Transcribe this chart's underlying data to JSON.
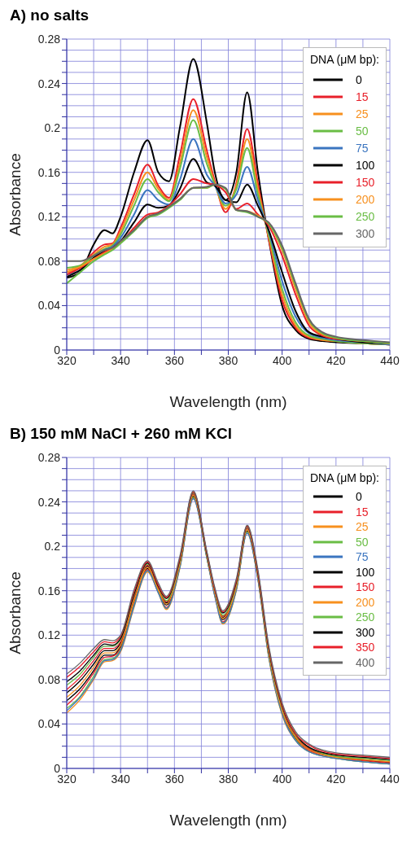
{
  "chart_data": [
    {
      "type": "line",
      "title": "A) no salts",
      "xlabel": "Wavelength (nm)",
      "ylabel": "Absorbance",
      "legend_title": "DNA (μM bp):",
      "legend": "top right",
      "grid": true,
      "xlim": [
        320,
        440
      ],
      "xticks": [
        320,
        {
          "value": 330,
          "label": null
        },
        340,
        {
          "value": 350,
          "label": null
        },
        360,
        {
          "value": 370,
          "label": null
        },
        380,
        {
          "value": 390,
          "label": null
        },
        400,
        {
          "value": 410,
          "label": null
        },
        420,
        {
          "value": 430,
          "label": null
        },
        440
      ],
      "ylim": [
        0,
        0.28
      ],
      "yticks": [
        0,
        {
          "value": 0.01,
          "label": null
        },
        {
          "value": 0.02,
          "label": null
        },
        {
          "value": 0.03,
          "label": null
        },
        0.04,
        {
          "value": 0.05,
          "label": null
        },
        {
          "value": 0.06,
          "label": null
        },
        {
          "value": 0.07,
          "label": null
        },
        0.08,
        {
          "value": 0.09,
          "label": null
        },
        {
          "value": 0.1,
          "label": null
        },
        {
          "value": 0.11,
          "label": null
        },
        0.12,
        {
          "value": 0.13,
          "label": null
        },
        {
          "value": 0.14,
          "label": null
        },
        {
          "value": 0.15,
          "label": null
        },
        0.16,
        {
          "value": 0.17,
          "label": null
        },
        {
          "value": 0.18,
          "label": null
        },
        {
          "value": 0.19,
          "label": null
        },
        0.2,
        {
          "value": 0.21,
          "label": null
        },
        {
          "value": 0.22,
          "label": null
        },
        {
          "value": 0.23,
          "label": null
        },
        0.24,
        {
          "value": 0.25,
          "label": null
        },
        {
          "value": 0.26,
          "label": null
        },
        {
          "value": 0.27,
          "label": null
        },
        0.28
      ],
      "x": [
        320,
        325,
        330,
        334,
        337,
        340,
        345,
        350,
        354,
        358,
        362,
        367,
        372,
        375,
        379,
        383,
        387,
        391,
        395,
        400,
        405,
        410,
        415,
        420,
        430,
        440
      ],
      "series": [
        {
          "name": "0",
          "color": "#000000",
          "values": [
            0.065,
            0.07,
            0.095,
            0.108,
            0.105,
            0.12,
            0.16,
            0.189,
            0.16,
            0.152,
            0.2,
            0.262,
            0.205,
            0.16,
            0.135,
            0.16,
            0.232,
            0.16,
            0.1,
            0.04,
            0.018,
            0.01,
            0.008,
            0.007,
            0.006,
            0.005
          ]
        },
        {
          "name": "15",
          "color": "#e8202a",
          "values": [
            0.07,
            0.075,
            0.088,
            0.095,
            0.096,
            0.11,
            0.14,
            0.167,
            0.148,
            0.137,
            0.175,
            0.226,
            0.18,
            0.152,
            0.124,
            0.15,
            0.199,
            0.15,
            0.1,
            0.045,
            0.02,
            0.011,
            0.009,
            0.008,
            0.006,
            0.005
          ]
        },
        {
          "name": "25",
          "color": "#f7901e",
          "values": [
            0.072,
            0.076,
            0.086,
            0.093,
            0.095,
            0.107,
            0.135,
            0.16,
            0.145,
            0.135,
            0.168,
            0.216,
            0.174,
            0.15,
            0.127,
            0.148,
            0.19,
            0.145,
            0.102,
            0.05,
            0.022,
            0.012,
            0.009,
            0.008,
            0.006,
            0.005
          ]
        },
        {
          "name": "50",
          "color": "#6abd45",
          "values": [
            0.074,
            0.076,
            0.085,
            0.091,
            0.094,
            0.104,
            0.13,
            0.154,
            0.142,
            0.134,
            0.163,
            0.207,
            0.168,
            0.149,
            0.13,
            0.145,
            0.182,
            0.14,
            0.104,
            0.055,
            0.025,
            0.013,
            0.01,
            0.008,
            0.006,
            0.005
          ]
        },
        {
          "name": "75",
          "color": "#3b75c0",
          "values": [
            0.068,
            0.072,
            0.083,
            0.09,
            0.093,
            0.101,
            0.122,
            0.144,
            0.135,
            0.131,
            0.153,
            0.19,
            0.158,
            0.148,
            0.132,
            0.14,
            0.165,
            0.135,
            0.107,
            0.062,
            0.03,
            0.015,
            0.011,
            0.009,
            0.007,
            0.005
          ]
        },
        {
          "name": "100",
          "color": "#000000",
          "values": [
            0.066,
            0.072,
            0.083,
            0.089,
            0.092,
            0.098,
            0.115,
            0.131,
            0.128,
            0.13,
            0.145,
            0.172,
            0.151,
            0.148,
            0.135,
            0.133,
            0.149,
            0.13,
            0.108,
            0.07,
            0.035,
            0.016,
            0.012,
            0.01,
            0.007,
            0.006
          ]
        },
        {
          "name": "150",
          "color": "#e8202a",
          "values": [
            0.068,
            0.074,
            0.082,
            0.088,
            0.092,
            0.097,
            0.11,
            0.122,
            0.124,
            0.13,
            0.14,
            0.154,
            0.15,
            0.149,
            0.142,
            0.127,
            0.132,
            0.122,
            0.112,
            0.085,
            0.05,
            0.022,
            0.013,
            0.01,
            0.008,
            0.006
          ]
        },
        {
          "name": "200",
          "color": "#f7901e",
          "values": [
            0.07,
            0.075,
            0.082,
            0.087,
            0.091,
            0.097,
            0.108,
            0.12,
            0.123,
            0.129,
            0.136,
            0.146,
            0.146,
            0.149,
            0.145,
            0.126,
            0.125,
            0.121,
            0.114,
            0.09,
            0.055,
            0.025,
            0.014,
            0.011,
            0.008,
            0.006
          ]
        },
        {
          "name": "250",
          "color": "#6abd45",
          "values": [
            0.06,
            0.07,
            0.08,
            0.086,
            0.09,
            0.096,
            0.107,
            0.119,
            0.122,
            0.128,
            0.135,
            0.146,
            0.146,
            0.149,
            0.145,
            0.126,
            0.124,
            0.12,
            0.114,
            0.092,
            0.058,
            0.027,
            0.015,
            0.011,
            0.008,
            0.006
          ]
        },
        {
          "name": "300",
          "color": "#666666",
          "values": [
            0.08,
            0.08,
            0.085,
            0.09,
            0.092,
            0.098,
            0.108,
            0.12,
            0.123,
            0.129,
            0.136,
            0.146,
            0.147,
            0.149,
            0.146,
            0.126,
            0.125,
            0.12,
            0.115,
            0.094,
            0.06,
            0.028,
            0.016,
            0.012,
            0.009,
            0.007
          ]
        }
      ]
    },
    {
      "type": "line",
      "title": "B) 150 mM NaCl + 260 mM KCl",
      "xlabel": "Wavelength (nm)",
      "ylabel": "Absorbance",
      "legend_title": "DNA (μM bp):",
      "legend": "top right",
      "grid": true,
      "xlim": [
        320,
        440
      ],
      "xticks": [
        320,
        {
          "value": 330,
          "label": null
        },
        340,
        {
          "value": 350,
          "label": null
        },
        360,
        {
          "value": 370,
          "label": null
        },
        380,
        {
          "value": 390,
          "label": null
        },
        400,
        {
          "value": 410,
          "label": null
        },
        420,
        {
          "value": 430,
          "label": null
        },
        440
      ],
      "ylim": [
        0,
        0.28
      ],
      "yticks": [
        0,
        {
          "value": 0.01,
          "label": null
        },
        {
          "value": 0.02,
          "label": null
        },
        {
          "value": 0.03,
          "label": null
        },
        0.04,
        {
          "value": 0.05,
          "label": null
        },
        {
          "value": 0.06,
          "label": null
        },
        {
          "value": 0.07,
          "label": null
        },
        0.08,
        {
          "value": 0.09,
          "label": null
        },
        {
          "value": 0.1,
          "label": null
        },
        {
          "value": 0.11,
          "label": null
        },
        0.12,
        {
          "value": 0.13,
          "label": null
        },
        {
          "value": 0.14,
          "label": null
        },
        {
          "value": 0.15,
          "label": null
        },
        0.16,
        {
          "value": 0.17,
          "label": null
        },
        {
          "value": 0.18,
          "label": null
        },
        {
          "value": 0.19,
          "label": null
        },
        0.2,
        {
          "value": 0.21,
          "label": null
        },
        {
          "value": 0.22,
          "label": null
        },
        {
          "value": 0.23,
          "label": null
        },
        0.24,
        {
          "value": 0.25,
          "label": null
        },
        {
          "value": 0.26,
          "label": null
        },
        {
          "value": 0.27,
          "label": null
        },
        0.28
      ],
      "x": [
        320,
        325,
        330,
        334,
        337,
        340,
        345,
        350,
        354,
        357,
        362,
        367,
        372,
        375,
        378,
        383,
        387,
        391,
        395,
        400,
        405,
        410,
        420,
        430,
        440
      ],
      "series": [
        {
          "name": "0",
          "color": "#000000",
          "values": [
            0.061,
            0.072,
            0.088,
            0.102,
            0.102,
            0.11,
            0.15,
            0.18,
            0.16,
            0.147,
            0.183,
            0.245,
            0.192,
            0.157,
            0.134,
            0.163,
            0.214,
            0.172,
            0.103,
            0.051,
            0.027,
            0.017,
            0.01,
            0.007,
            0.005
          ]
        },
        {
          "name": "15",
          "color": "#e8202a",
          "values": [
            0.057,
            0.069,
            0.086,
            0.1,
            0.101,
            0.108,
            0.148,
            0.179,
            0.16,
            0.145,
            0.182,
            0.244,
            0.191,
            0.156,
            0.132,
            0.162,
            0.213,
            0.172,
            0.102,
            0.05,
            0.026,
            0.016,
            0.01,
            0.007,
            0.005
          ]
        },
        {
          "name": "25",
          "color": "#f7901e",
          "values": [
            0.05,
            0.062,
            0.08,
            0.096,
            0.097,
            0.105,
            0.145,
            0.177,
            0.158,
            0.143,
            0.18,
            0.243,
            0.19,
            0.155,
            0.13,
            0.16,
            0.212,
            0.17,
            0.1,
            0.048,
            0.025,
            0.015,
            0.009,
            0.006,
            0.004
          ]
        },
        {
          "name": "50",
          "color": "#6abd45",
          "values": [
            0.054,
            0.065,
            0.083,
            0.098,
            0.099,
            0.107,
            0.147,
            0.178,
            0.159,
            0.144,
            0.181,
            0.244,
            0.19,
            0.156,
            0.131,
            0.161,
            0.213,
            0.171,
            0.101,
            0.049,
            0.026,
            0.015,
            0.009,
            0.006,
            0.004
          ]
        },
        {
          "name": "75",
          "color": "#3b75c0",
          "values": [
            0.052,
            0.064,
            0.081,
            0.097,
            0.098,
            0.106,
            0.146,
            0.178,
            0.158,
            0.144,
            0.181,
            0.243,
            0.19,
            0.155,
            0.131,
            0.161,
            0.212,
            0.17,
            0.101,
            0.049,
            0.025,
            0.015,
            0.009,
            0.006,
            0.004
          ]
        },
        {
          "name": "100",
          "color": "#000000",
          "values": [
            0.068,
            0.079,
            0.094,
            0.106,
            0.106,
            0.113,
            0.153,
            0.182,
            0.162,
            0.149,
            0.185,
            0.247,
            0.193,
            0.159,
            0.136,
            0.165,
            0.216,
            0.174,
            0.105,
            0.053,
            0.029,
            0.018,
            0.011,
            0.008,
            0.006
          ]
        },
        {
          "name": "150",
          "color": "#e8202a",
          "values": [
            0.071,
            0.082,
            0.097,
            0.108,
            0.108,
            0.114,
            0.154,
            0.183,
            0.163,
            0.15,
            0.186,
            0.247,
            0.193,
            0.159,
            0.137,
            0.166,
            0.216,
            0.175,
            0.106,
            0.054,
            0.029,
            0.018,
            0.011,
            0.008,
            0.006
          ]
        },
        {
          "name": "200",
          "color": "#f7901e",
          "values": [
            0.064,
            0.075,
            0.091,
            0.104,
            0.104,
            0.111,
            0.151,
            0.181,
            0.161,
            0.148,
            0.184,
            0.246,
            0.192,
            0.158,
            0.135,
            0.164,
            0.215,
            0.173,
            0.104,
            0.052,
            0.028,
            0.017,
            0.01,
            0.008,
            0.006
          ]
        },
        {
          "name": "250",
          "color": "#6abd45",
          "values": [
            0.075,
            0.085,
            0.1,
            0.11,
            0.11,
            0.116,
            0.156,
            0.184,
            0.164,
            0.151,
            0.187,
            0.248,
            0.194,
            0.16,
            0.138,
            0.167,
            0.217,
            0.176,
            0.107,
            0.055,
            0.03,
            0.019,
            0.011,
            0.009,
            0.007
          ]
        },
        {
          "name": "300",
          "color": "#000000",
          "values": [
            0.078,
            0.088,
            0.102,
            0.112,
            0.111,
            0.117,
            0.157,
            0.185,
            0.164,
            0.153,
            0.188,
            0.249,
            0.194,
            0.161,
            0.14,
            0.168,
            0.218,
            0.176,
            0.108,
            0.056,
            0.031,
            0.019,
            0.012,
            0.01,
            0.008
          ]
        },
        {
          "name": "350",
          "color": "#e8202a",
          "values": [
            0.082,
            0.092,
            0.105,
            0.114,
            0.113,
            0.119,
            0.159,
            0.186,
            0.165,
            0.154,
            0.189,
            0.249,
            0.195,
            0.161,
            0.141,
            0.169,
            0.218,
            0.177,
            0.109,
            0.057,
            0.031,
            0.021,
            0.013,
            0.011,
            0.009
          ]
        },
        {
          "name": "400",
          "color": "#666666",
          "values": [
            0.085,
            0.095,
            0.108,
            0.116,
            0.115,
            0.12,
            0.161,
            0.187,
            0.167,
            0.155,
            0.191,
            0.25,
            0.196,
            0.163,
            0.142,
            0.171,
            0.219,
            0.179,
            0.111,
            0.059,
            0.033,
            0.022,
            0.014,
            0.012,
            0.01
          ]
        }
      ]
    }
  ]
}
